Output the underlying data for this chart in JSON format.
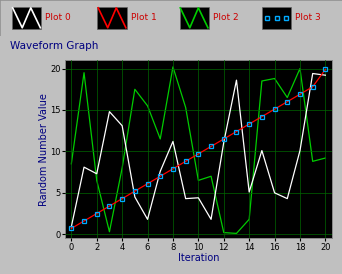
{
  "title": "Waveform Graph",
  "xlabel": "Iteration",
  "ylabel": "Random Number Value",
  "xlim": [
    -0.5,
    20.5
  ],
  "ylim": [
    -0.5,
    21
  ],
  "xticks": [
    0,
    2,
    4,
    6,
    8,
    10,
    12,
    14,
    16,
    18,
    20
  ],
  "yticks": [
    0,
    5,
    10,
    15,
    20
  ],
  "bg_color": "#000000",
  "fig_bg": "#c0c0c0",
  "grid_color": "#006600",
  "plot0_color": "#ffffff",
  "plot1_color": "#ff0000",
  "plot2_color": "#00cc00",
  "plot3_color": "#00aaff",
  "plot0_data": [
    0.9,
    8.1,
    7.3,
    14.8,
    13.1,
    4.5,
    1.8,
    7.6,
    11.2,
    4.3,
    4.4,
    1.8,
    11.1,
    18.6,
    5.1,
    10.1,
    5.0,
    4.3,
    10.1,
    19.4,
    19.2
  ],
  "plot1_data": [
    0.7,
    1.6,
    2.5,
    3.4,
    4.3,
    5.2,
    6.1,
    7.0,
    7.9,
    8.8,
    9.7,
    10.6,
    11.5,
    12.4,
    13.3,
    14.2,
    15.1,
    16.0,
    16.9,
    17.8,
    19.9
  ],
  "plot2_data": [
    8.5,
    19.5,
    6.5,
    0.3,
    8.0,
    17.5,
    15.5,
    11.5,
    20.2,
    15.3,
    6.5,
    7.0,
    0.2,
    0.1,
    1.8,
    18.5,
    18.8,
    16.5,
    20.0,
    8.8,
    9.2
  ],
  "legend_labels": [
    "Plot 0",
    "Plot 1",
    "Plot 2",
    "Plot 3"
  ],
  "header_text_color": "#cc0000",
  "title_color": "#000080",
  "axis_label_color": "#000080"
}
